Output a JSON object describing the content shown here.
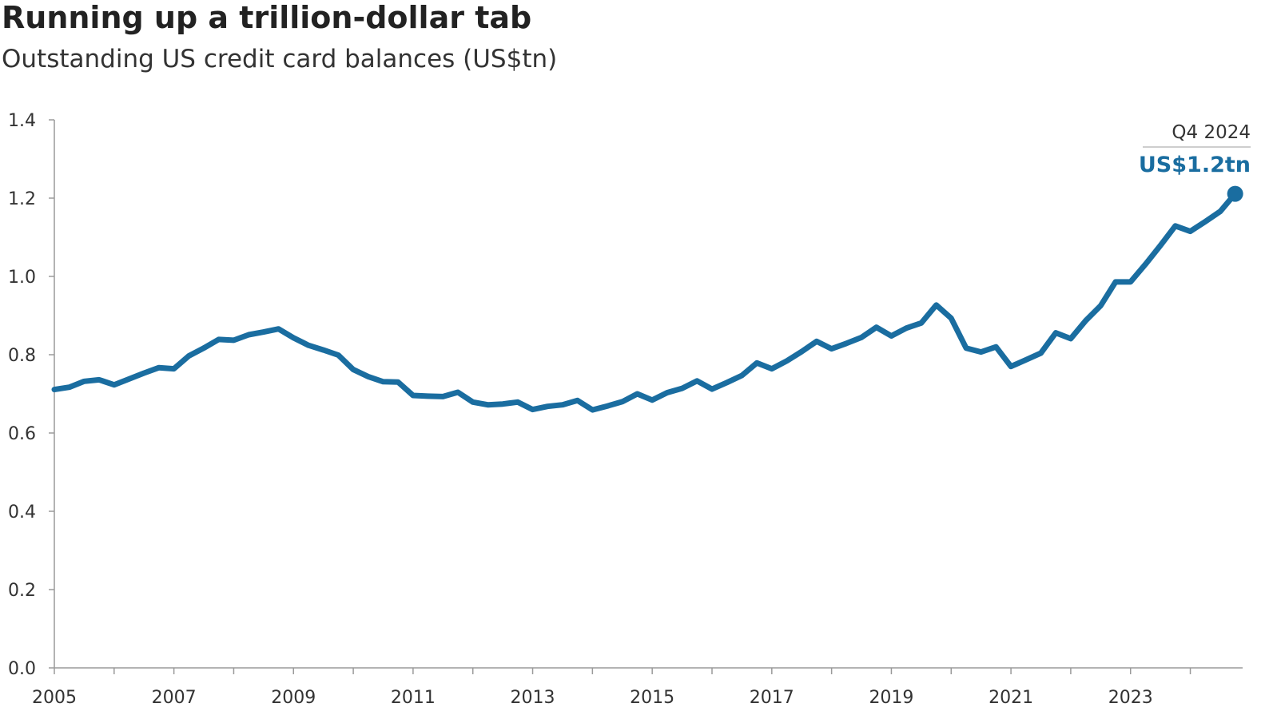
{
  "title": "Running up a trillion-dollar tab",
  "subtitle": "Outstanding US credit card balances (US$tn)",
  "chart_data": {
    "type": "line",
    "title": "Running up a trillion-dollar tab",
    "subtitle": "Outstanding US credit card balances (US$tn)",
    "xlabel": "",
    "ylabel": "",
    "ylim": [
      0,
      1.4
    ],
    "xlim": [
      2005,
      2024.875
    ],
    "y_ticks": [
      "0.0",
      "0.2",
      "0.4",
      "0.6",
      "0.8",
      "1.0",
      "1.2",
      "1.4"
    ],
    "x_tick_labels": [
      "2005",
      "2007",
      "2009",
      "2011",
      "2013",
      "2015",
      "2017",
      "2019",
      "2021",
      "2023"
    ],
    "grid": false,
    "line_color": "#1a6da0",
    "series": [
      {
        "x": [
          "Q1 2005",
          "Q2 2005",
          "Q3 2005",
          "Q4 2005",
          "Q1 2006",
          "Q2 2006",
          "Q3 2006",
          "Q4 2006",
          "Q1 2007",
          "Q2 2007",
          "Q3 2007",
          "Q4 2007",
          "Q1 2008",
          "Q2 2008",
          "Q3 2008",
          "Q4 2008",
          "Q1 2009",
          "Q2 2009",
          "Q3 2009",
          "Q4 2009",
          "Q1 2010",
          "Q2 2010",
          "Q3 2010",
          "Q4 2010",
          "Q1 2011",
          "Q2 2011",
          "Q3 2011",
          "Q4 2011",
          "Q1 2012",
          "Q2 2012",
          "Q3 2012",
          "Q4 2012",
          "Q1 2013",
          "Q2 2013",
          "Q3 2013",
          "Q4 2013",
          "Q1 2014",
          "Q2 2014",
          "Q3 2014",
          "Q4 2014",
          "Q1 2015",
          "Q2 2015",
          "Q3 2015",
          "Q4 2015",
          "Q1 2016",
          "Q2 2016",
          "Q3 2016",
          "Q4 2016",
          "Q1 2017",
          "Q2 2017",
          "Q3 2017",
          "Q4 2017",
          "Q1 2018",
          "Q2 2018",
          "Q3 2018",
          "Q4 2018",
          "Q1 2019",
          "Q2 2019",
          "Q3 2019",
          "Q4 2019",
          "Q1 2020",
          "Q2 2020",
          "Q3 2020",
          "Q4 2020",
          "Q1 2021",
          "Q2 2021",
          "Q3 2021",
          "Q4 2021",
          "Q1 2022",
          "Q2 2022",
          "Q3 2022",
          "Q4 2022",
          "Q1 2023",
          "Q2 2023",
          "Q3 2023",
          "Q4 2023",
          "Q1 2024",
          "Q2 2024",
          "Q3 2024",
          "Q4 2024"
        ],
        "values": [
          0.711,
          0.717,
          0.732,
          0.736,
          0.723,
          0.738,
          0.753,
          0.767,
          0.764,
          0.797,
          0.817,
          0.839,
          0.837,
          0.851,
          0.858,
          0.866,
          0.843,
          0.824,
          0.812,
          0.799,
          0.762,
          0.744,
          0.731,
          0.73,
          0.696,
          0.694,
          0.693,
          0.704,
          0.679,
          0.672,
          0.674,
          0.679,
          0.66,
          0.668,
          0.672,
          0.683,
          0.659,
          0.669,
          0.68,
          0.7,
          0.684,
          0.703,
          0.714,
          0.733,
          0.712,
          0.729,
          0.747,
          0.779,
          0.764,
          0.784,
          0.808,
          0.834,
          0.815,
          0.829,
          0.844,
          0.87,
          0.848,
          0.868,
          0.881,
          0.927,
          0.893,
          0.817,
          0.807,
          0.82,
          0.77,
          0.787,
          0.804,
          0.856,
          0.841,
          0.887,
          0.925,
          0.986,
          0.986,
          1.031,
          1.079,
          1.129,
          1.115,
          1.14,
          1.166,
          1.211
        ]
      }
    ],
    "annotation": {
      "date": "Q4 2024",
      "value_label": "US$1.2tn",
      "value": 1.211
    }
  }
}
